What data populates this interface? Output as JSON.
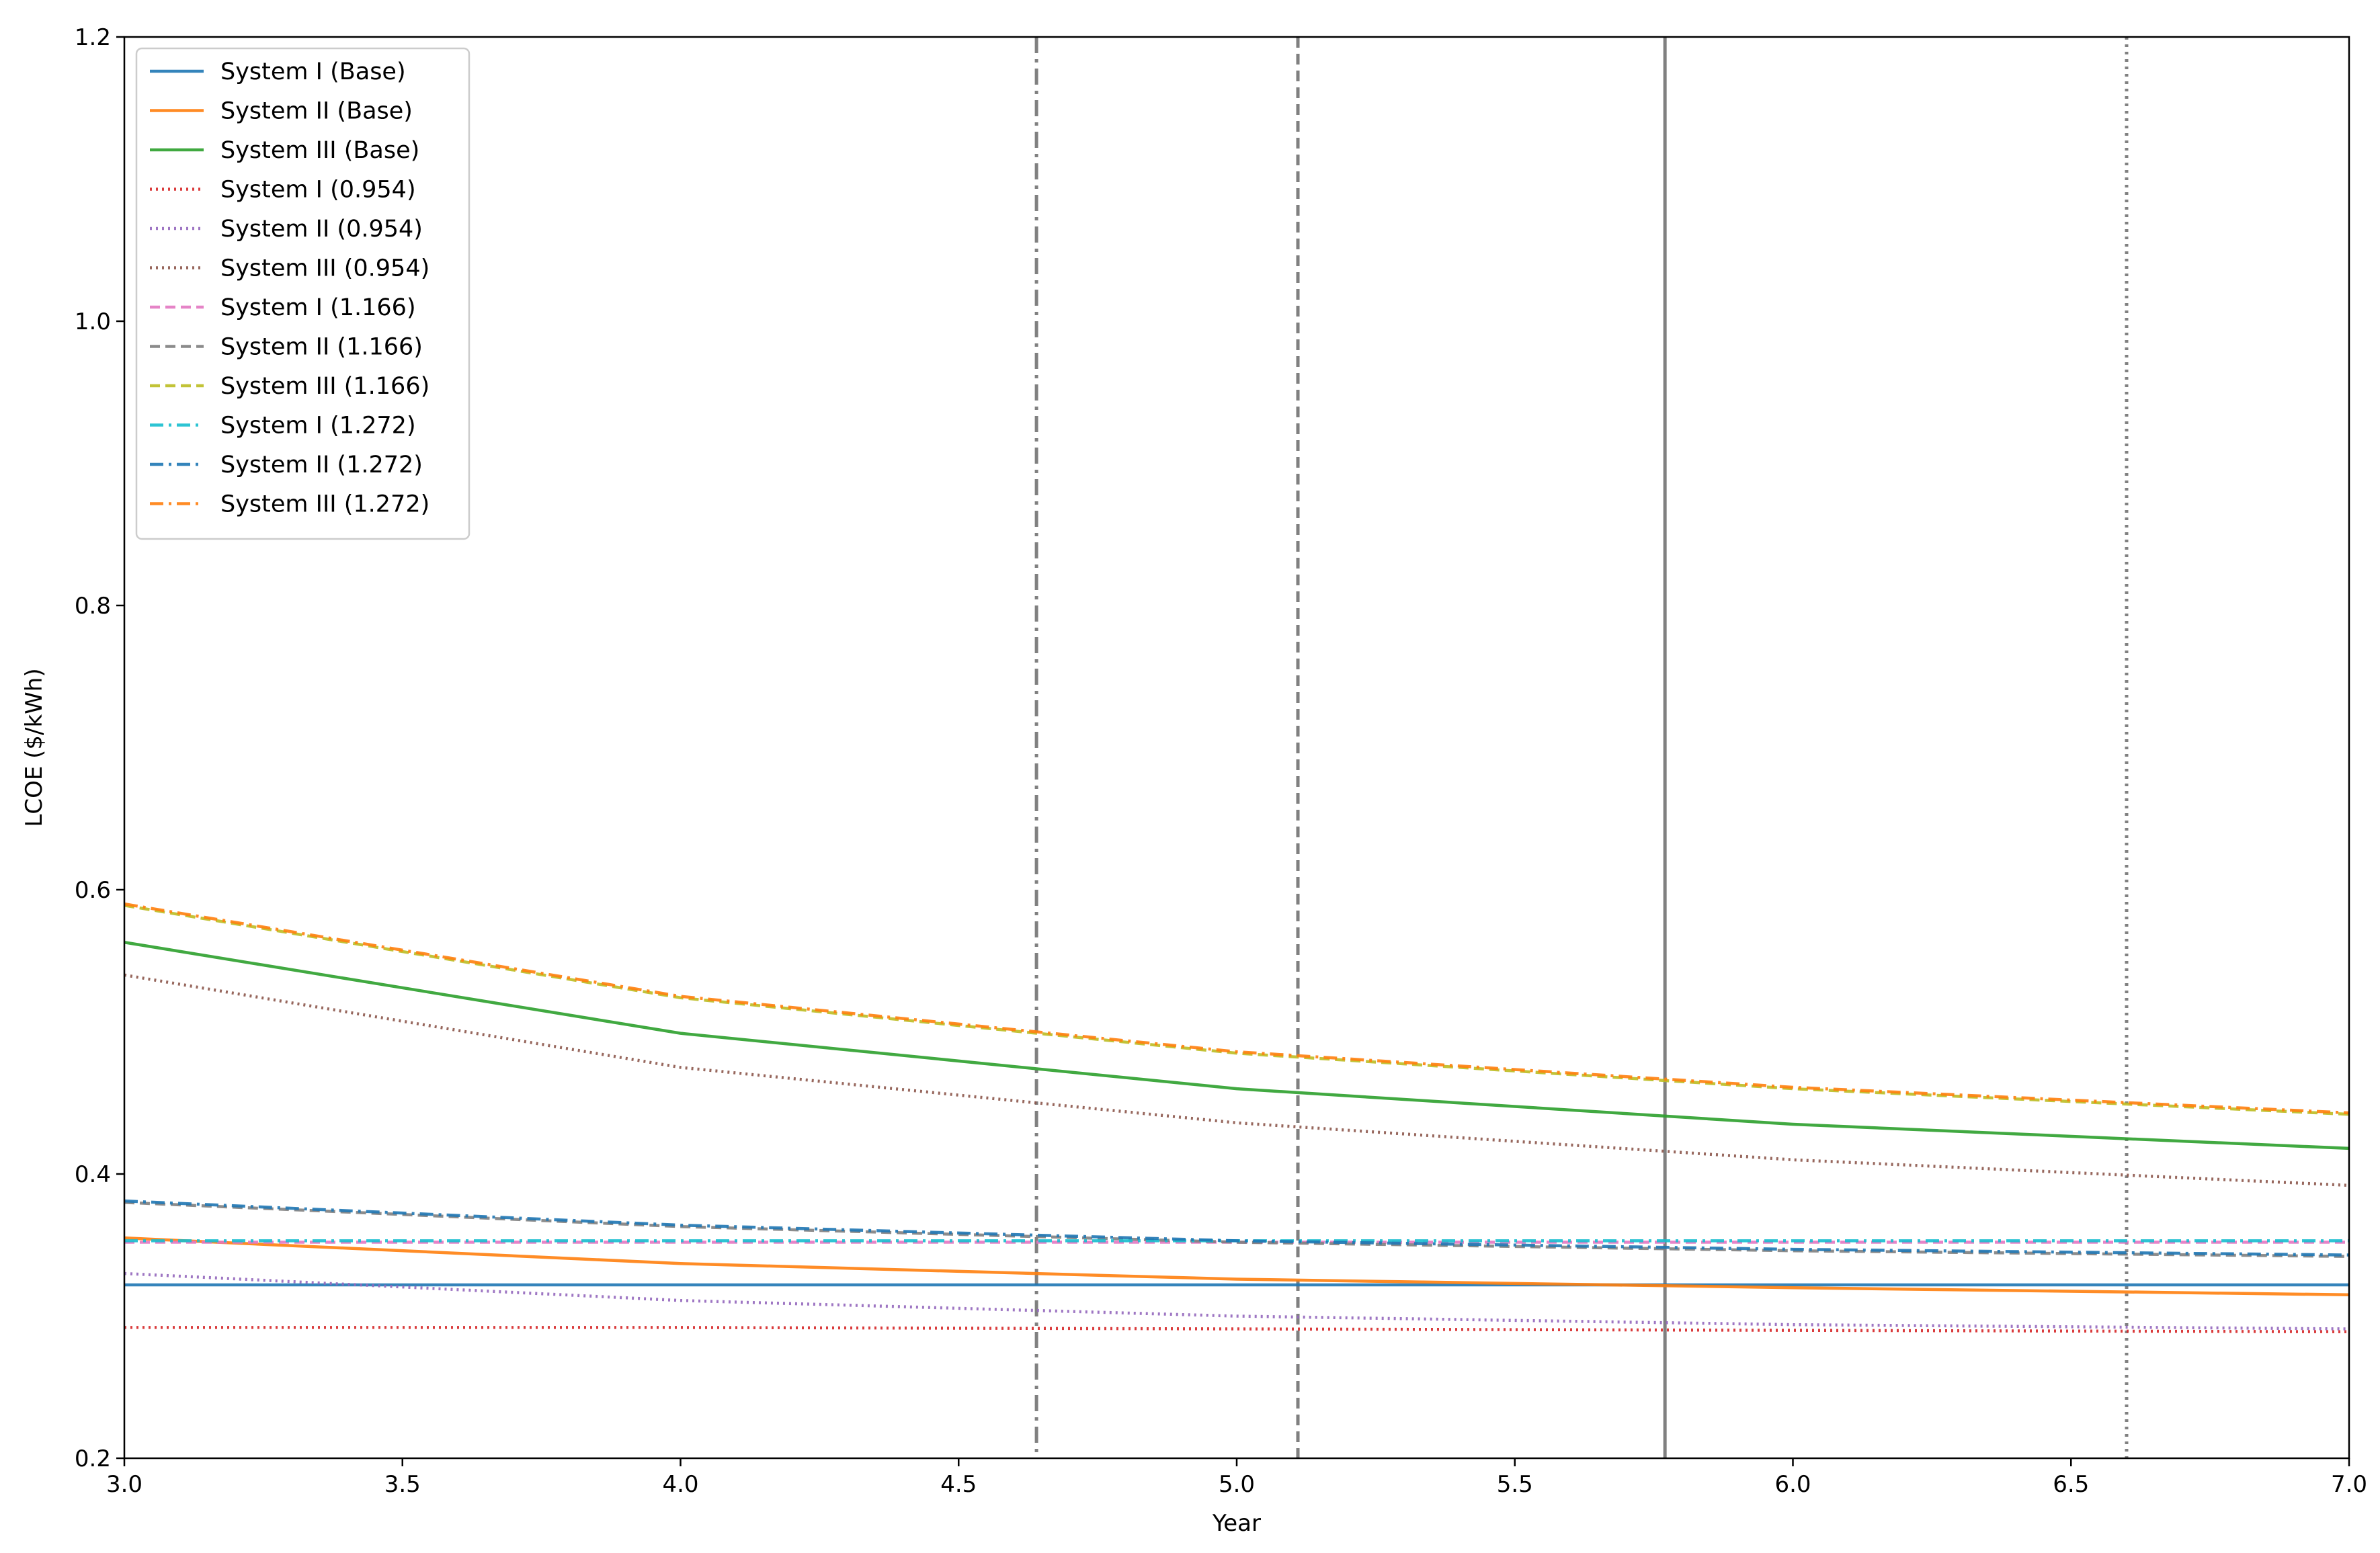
{
  "chart_data": {
    "type": "line",
    "title": "",
    "xlabel": "Year",
    "ylabel": "LCOE ($/kWh)",
    "xlim": [
      3.0,
      7.0
    ],
    "ylim": [
      0.2,
      1.2
    ],
    "xticks": [
      "3.0",
      "3.5",
      "4.0",
      "4.5",
      "5.0",
      "5.5",
      "6.0",
      "6.5",
      "7.0"
    ],
    "yticks": [
      "0.2",
      "0.4",
      "0.6",
      "0.8",
      "1.0",
      "1.2"
    ],
    "grid": false,
    "legend_position": "upper-left",
    "x": [
      3.0,
      4.0,
      5.0,
      6.0,
      7.0
    ],
    "series": [
      {
        "name": "System I (Base)",
        "values": [
          0.322,
          0.322,
          0.322,
          0.322,
          0.322
        ],
        "color": "#1f77b4",
        "dash": "solid"
      },
      {
        "name": "System II (Base)",
        "values": [
          0.355,
          0.337,
          0.326,
          0.32,
          0.315
        ],
        "color": "#ff7f0e",
        "dash": "solid"
      },
      {
        "name": "System III (Base)",
        "values": [
          0.563,
          0.499,
          0.46,
          0.435,
          0.418
        ],
        "color": "#2ca02c",
        "dash": "solid"
      },
      {
        "name": "System I (0.954)",
        "values": [
          0.292,
          0.292,
          0.291,
          0.29,
          0.289
        ],
        "color": "#d62728",
        "dash": "dotted"
      },
      {
        "name": "System II (0.954)",
        "values": [
          0.33,
          0.311,
          0.3,
          0.294,
          0.291
        ],
        "color": "#9467bd",
        "dash": "dotted"
      },
      {
        "name": "System III (0.954)",
        "values": [
          0.54,
          0.475,
          0.436,
          0.41,
          0.392
        ],
        "color": "#8c564b",
        "dash": "dotted"
      },
      {
        "name": "System I (1.166)",
        "values": [
          0.352,
          0.352,
          0.352,
          0.352,
          0.352
        ],
        "color": "#e377c2",
        "dash": "dashed"
      },
      {
        "name": "System II (1.166)",
        "values": [
          0.38,
          0.363,
          0.352,
          0.346,
          0.342
        ],
        "color": "#7f7f7f",
        "dash": "dashed"
      },
      {
        "name": "System III (1.166)",
        "values": [
          0.589,
          0.524,
          0.485,
          0.46,
          0.442
        ],
        "color": "#bcbd22",
        "dash": "dashed"
      },
      {
        "name": "System I (1.272)",
        "values": [
          0.353,
          0.353,
          0.353,
          0.353,
          0.353
        ],
        "color": "#17becf",
        "dash": "dashdot"
      },
      {
        "name": "System II (1.272)",
        "values": [
          0.381,
          0.364,
          0.353,
          0.347,
          0.343
        ],
        "color": "#1f77b4",
        "dash": "dashdot"
      },
      {
        "name": "System III (1.272)",
        "values": [
          0.59,
          0.525,
          0.486,
          0.461,
          0.443
        ],
        "color": "#ff7f0e",
        "dash": "dashdot"
      }
    ],
    "vlines": [
      {
        "x": 4.64,
        "color": "#808080",
        "dash": "dashdot"
      },
      {
        "x": 5.11,
        "color": "#808080",
        "dash": "dashed"
      },
      {
        "x": 5.77,
        "color": "#808080",
        "dash": "solid"
      },
      {
        "x": 6.6,
        "color": "#808080",
        "dash": "dotted"
      }
    ]
  }
}
